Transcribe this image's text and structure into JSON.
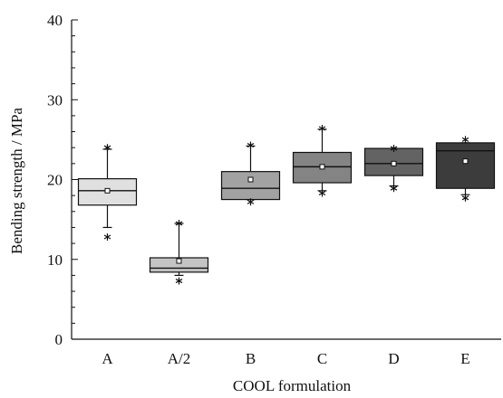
{
  "chart_data": {
    "type": "box",
    "xlabel": "COOL formulation",
    "ylabel": "Bending strength / MPa",
    "ylim": [
      0,
      40
    ],
    "yticks": [
      0,
      10,
      20,
      30,
      40
    ],
    "grid": false,
    "legend": "none",
    "categories": [
      "A",
      "A/2",
      "B",
      "C",
      "D",
      "E"
    ],
    "boxes": [
      {
        "category": "A",
        "fill": "#e0e0e0",
        "q1": 16.8,
        "median": 18.6,
        "q3": 20.1,
        "mean": 18.6,
        "whisker_low": 14.0,
        "whisker_high": 23.8,
        "outliers": [
          24.0,
          12.8
        ]
      },
      {
        "category": "A/2",
        "fill": "#c4c4c4",
        "q1": 8.4,
        "median": 8.9,
        "q3": 10.2,
        "mean": 9.8,
        "whisker_low": 8.0,
        "whisker_high": 14.5,
        "outliers": [
          14.5,
          7.3
        ]
      },
      {
        "category": "B",
        "fill": "#a2a2a2",
        "q1": 17.5,
        "median": 18.9,
        "q3": 21.0,
        "mean": 20.0,
        "whisker_low": 17.5,
        "whisker_high": 24.2,
        "outliers": [
          24.3,
          17.2
        ]
      },
      {
        "category": "C",
        "fill": "#848484",
        "q1": 19.6,
        "median": 21.6,
        "q3": 23.4,
        "mean": 21.6,
        "whisker_low": 18.6,
        "whisker_high": 26.3,
        "outliers": [
          26.4,
          18.3
        ]
      },
      {
        "category": "D",
        "fill": "#636363",
        "q1": 20.5,
        "median": 22.0,
        "q3": 23.9,
        "mean": 22.0,
        "whisker_low": 19.2,
        "whisker_high": 23.9,
        "outliers": [
          23.9,
          18.9
        ]
      },
      {
        "category": "E",
        "fill": "#3c3c3c",
        "q1": 18.9,
        "median": 23.6,
        "q3": 24.6,
        "mean": 22.3,
        "whisker_low": 18.1,
        "whisker_high": 24.6,
        "outliers": [
          25.0,
          17.7
        ]
      }
    ]
  }
}
